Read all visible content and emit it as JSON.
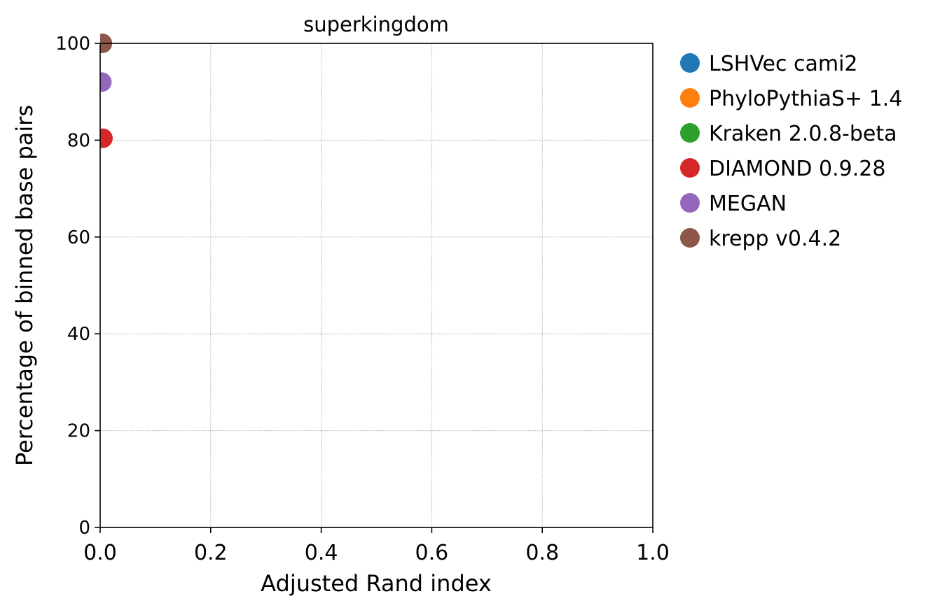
{
  "chart_data": {
    "type": "scatter",
    "title": "superkingdom",
    "xlabel": "Adjusted Rand index",
    "ylabel": "Percentage of binned base pairs",
    "xlim": [
      0.0,
      1.0
    ],
    "ylim": [
      0,
      100
    ],
    "x_ticks": [
      "0.0",
      "0.2",
      "0.4",
      "0.6",
      "0.8",
      "1.0"
    ],
    "y_ticks": [
      "0",
      "20",
      "40",
      "60",
      "80",
      "100"
    ],
    "grid": true,
    "legend_position": "outside-right",
    "series": [
      {
        "name": "LSHVec cami2",
        "color": "#1f77b4",
        "x": [],
        "y": []
      },
      {
        "name": "PhyloPythiaS+ 1.4",
        "color": "#ff7f0e",
        "x": [],
        "y": []
      },
      {
        "name": "Kraken 2.0.8-beta",
        "color": "#2ca02c",
        "x": [],
        "y": []
      },
      {
        "name": "DIAMOND 0.9.28",
        "color": "#d62728",
        "x": [
          0.005
        ],
        "y": [
          80.4
        ]
      },
      {
        "name": "MEGAN",
        "color": "#9467bd",
        "x": [
          0.003
        ],
        "y": [
          92.0
        ]
      },
      {
        "name": "krepp v0.4.2",
        "color": "#8c564b",
        "x": [
          0.004
        ],
        "y": [
          100.0
        ]
      }
    ]
  }
}
